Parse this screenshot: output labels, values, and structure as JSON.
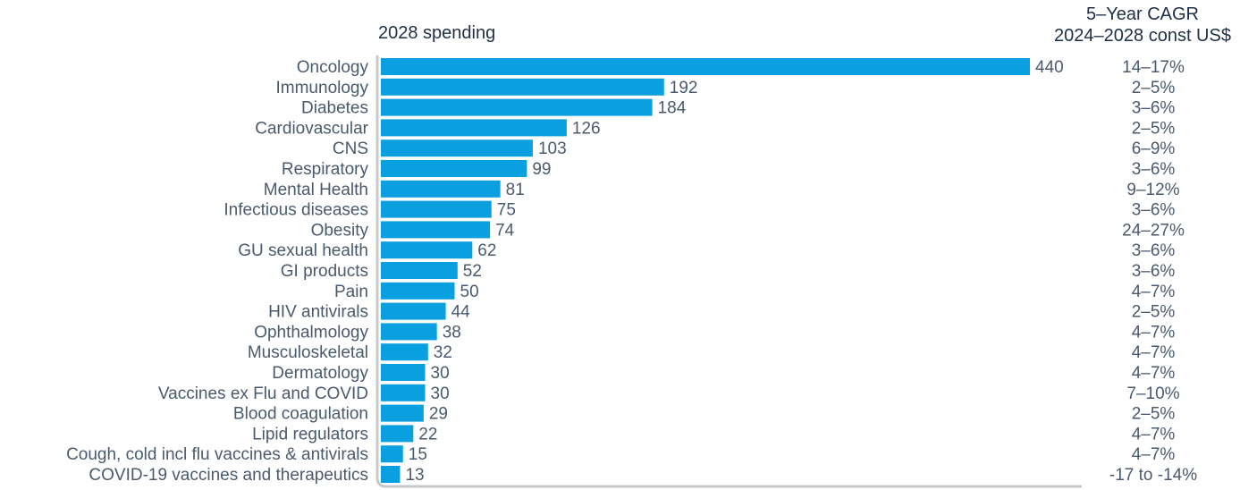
{
  "chart_data": {
    "type": "bar",
    "orientation": "horizontal",
    "title": "2028 spending",
    "cagr_header_line1": "5–Year CAGR",
    "cagr_header_line2": "2024–2028 const US$",
    "categories": [
      "Oncology",
      "Immunology",
      "Diabetes",
      "Cardiovascular",
      "CNS",
      "Respiratory",
      "Mental Health",
      "Infectious diseases",
      "Obesity",
      "GU sexual health",
      "GI products",
      "Pain",
      "HIV antivirals",
      "Ophthalmology",
      "Musculoskeletal",
      "Dermatology",
      "Vaccines ex Flu and COVID",
      "Blood coagulation",
      "Lipid regulators",
      "Cough, cold incl flu vaccines & antivirals",
      "COVID-19 vaccines and therapeutics"
    ],
    "values": [
      440,
      192,
      184,
      126,
      103,
      99,
      81,
      75,
      74,
      62,
      52,
      50,
      44,
      38,
      32,
      30,
      30,
      29,
      22,
      15,
      13
    ],
    "value_labels": [
      "440",
      "192",
      "184",
      "126",
      "103",
      "99",
      "81",
      "75",
      "74",
      "62",
      "52",
      "50",
      "44",
      "38",
      "32",
      "30",
      "30",
      "29",
      "22",
      "15",
      "13"
    ],
    "cagr": [
      "14–17%",
      "2–5%",
      "3–6%",
      "2–5%",
      "6–9%",
      "3–6%",
      "9–12%",
      "3–6%",
      "24–27%",
      "3–6%",
      "3–6%",
      "4–7%",
      "2–5%",
      "4–7%",
      "4–7%",
      "4–7%",
      "7–10%",
      "2–5%",
      "4–7%",
      "4–7%",
      "-17 to -14%"
    ],
    "xlim": [
      0,
      440
    ],
    "grid": false,
    "colors": {
      "bar": "#0a9fdf",
      "axis": "#c6c8cc",
      "label": "#4a5a6e",
      "header": "#1f2f48"
    }
  }
}
